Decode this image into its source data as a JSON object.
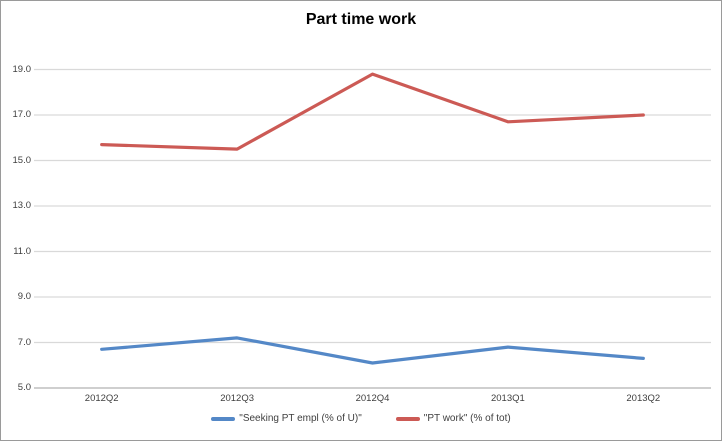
{
  "chart_data": {
    "type": "line",
    "title": "Part time work",
    "categories": [
      "2012Q2",
      "2012Q3",
      "2012Q4",
      "2013Q1",
      "2013Q2"
    ],
    "series": [
      {
        "name": "\"Seeking PT empl (% of U)\"",
        "color": "#5488C7",
        "values": [
          6.7,
          7.2,
          6.1,
          6.8,
          6.3
        ]
      },
      {
        "name": "\"PT work\" (% of tot)",
        "color": "#CC5A55",
        "values": [
          15.7,
          15.5,
          18.8,
          16.7,
          17.0
        ]
      }
    ],
    "xlabel": "",
    "ylabel": "",
    "ylim": [
      5.0,
      19.0
    ],
    "yticks": [
      5.0,
      7.0,
      9.0,
      11.0,
      13.0,
      15.0,
      17.0,
      19.0
    ],
    "ytick_labels": [
      "5.0",
      "7.0",
      "9.0",
      "11.0",
      "13.0",
      "15.0",
      "17.0",
      "19.0"
    ],
    "grid": "horizontal",
    "legend_position": "bottom"
  },
  "colors": {
    "gridline": "#D9D9D9",
    "axis_line": "#BFBFBF",
    "tick_text": "#3F3F3F",
    "frame_border": "#9A9A9A",
    "background": "#FFFFFF"
  }
}
